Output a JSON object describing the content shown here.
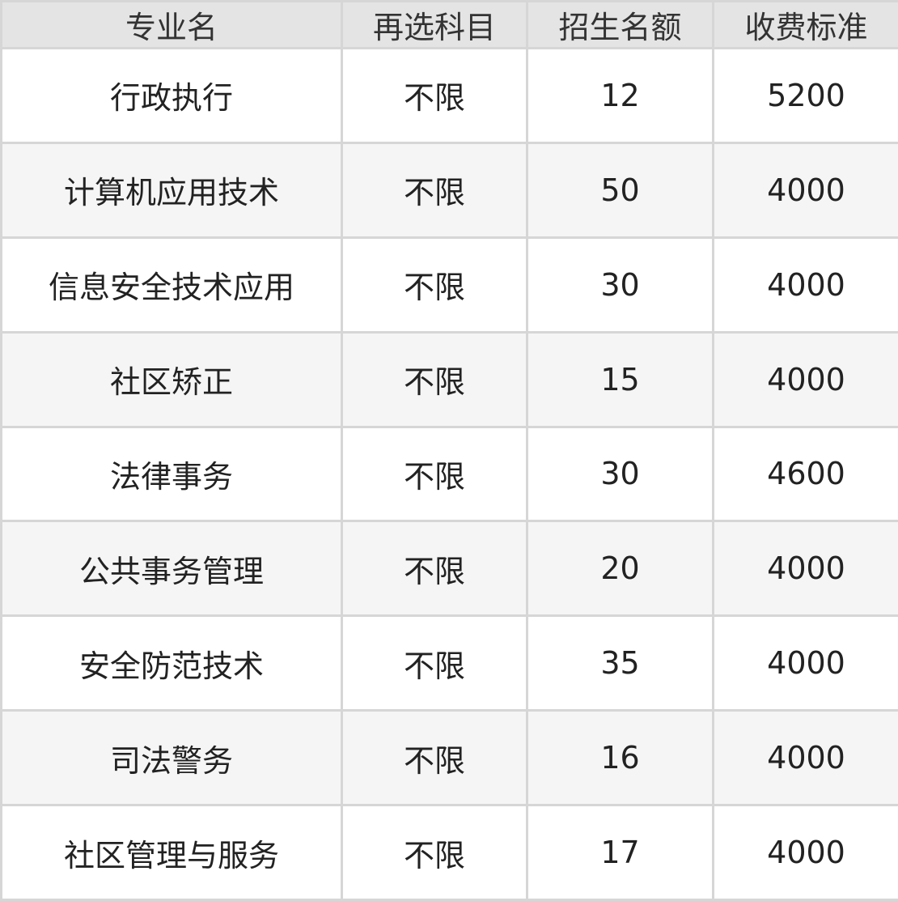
{
  "table": {
    "headers": [
      "专业名",
      "再选科目",
      "招生名额",
      "收费标准"
    ],
    "rows": [
      [
        "行政执行",
        "不限",
        "12",
        "5200"
      ],
      [
        "计算机应用技术",
        "不限",
        "50",
        "4000"
      ],
      [
        "信息安全技术应用",
        "不限",
        "30",
        "4000"
      ],
      [
        "社区矫正",
        "不限",
        "15",
        "4000"
      ],
      [
        "法律事务",
        "不限",
        "30",
        "4600"
      ],
      [
        "公共事务管理",
        "不限",
        "20",
        "4000"
      ],
      [
        "安全防范技术",
        "不限",
        "35",
        "4000"
      ],
      [
        "司法警务",
        "不限",
        "16",
        "4000"
      ],
      [
        "社区管理与服务",
        "不限",
        "17",
        "4000"
      ]
    ]
  }
}
